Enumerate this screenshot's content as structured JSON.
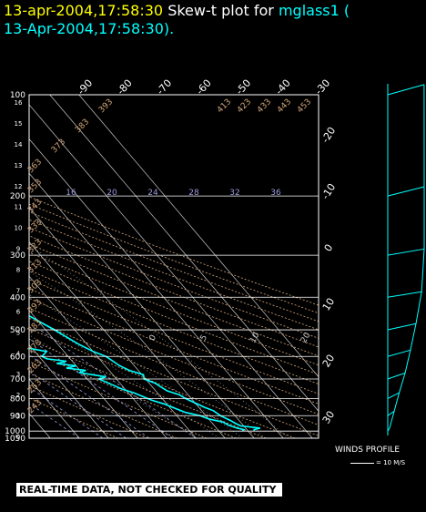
{
  "header": {
    "date_label": "13-apr-2004,17:58:30",
    "plot_label": "Skew-t plot for",
    "station": "mglass1",
    "paren_open": "(",
    "line2": "13-Apr-2004,17:58:30)."
  },
  "chart_data": {
    "type": "skew-t",
    "pressure_axis_labels": [
      "100",
      "200",
      "300",
      "400",
      "500",
      "600",
      "700",
      "800",
      "900",
      "1000",
      "1050"
    ],
    "pressure_levels_hpa": [
      100,
      200,
      300,
      400,
      500,
      600,
      700,
      800,
      900,
      1000,
      1050
    ],
    "height_axis_labels": [
      "0",
      "1",
      "2",
      "3",
      "4",
      "5",
      "6",
      "7",
      "8",
      "9",
      "10",
      "11",
      "12",
      "13",
      "14",
      "15",
      "16"
    ],
    "temperature_ticks_top": [
      "-90",
      "-80",
      "-70",
      "-60",
      "-50",
      "-40",
      "-30"
    ],
    "temperature_ticks_right": [
      "-20",
      "-10",
      "0",
      "10",
      "20",
      "30"
    ],
    "dry_adiabat_labels": [
      "393",
      "383",
      "373",
      "363",
      "353",
      "343",
      "333",
      "323",
      "313",
      "303",
      "293",
      "283",
      "273",
      "263",
      "253",
      "243",
      "413",
      "423",
      "433",
      "443",
      "453"
    ],
    "mixing_ratio_labels": [
      "16",
      "20",
      "24",
      "28",
      "32",
      "36"
    ],
    "lower_labels": [
      "0",
      "5",
      "10",
      "20"
    ],
    "temperature_profile": [
      [
        1000,
        22
      ],
      [
        990,
        22.5
      ],
      [
        980,
        25
      ],
      [
        965,
        19
      ],
      [
        950,
        18
      ],
      [
        930,
        17
      ],
      [
        900,
        15
      ],
      [
        870,
        14
      ],
      [
        850,
        12
      ],
      [
        800,
        8
      ],
      [
        780,
        7
      ],
      [
        760,
        4
      ],
      [
        740,
        3
      ],
      [
        720,
        2
      ],
      [
        700,
        -0.5
      ],
      [
        680,
        0.5
      ],
      [
        660,
        -3
      ],
      [
        640,
        -5
      ],
      [
        600,
        -7
      ],
      [
        580,
        -10
      ],
      [
        550,
        -13
      ],
      [
        500,
        -17
      ],
      [
        450,
        -22
      ],
      [
        400,
        -29
      ],
      [
        350,
        -36
      ],
      [
        300,
        -43
      ],
      [
        260,
        -50
      ],
      [
        230,
        -54
      ],
      [
        210,
        -58
      ],
      [
        200,
        -60
      ],
      [
        180,
        -61
      ],
      [
        160,
        -63
      ],
      [
        140,
        -63
      ],
      [
        120,
        -62
      ],
      [
        100,
        -61
      ]
    ],
    "dewpoint_profile": [
      [
        1000,
        18
      ],
      [
        990,
        19
      ],
      [
        980,
        17
      ],
      [
        960,
        15
      ],
      [
        940,
        14
      ],
      [
        920,
        10
      ],
      [
        900,
        8
      ],
      [
        880,
        4
      ],
      [
        860,
        2
      ],
      [
        850,
        1
      ],
      [
        830,
        -1
      ],
      [
        810,
        -4
      ],
      [
        790,
        -6
      ],
      [
        770,
        -8
      ],
      [
        750,
        -11
      ],
      [
        730,
        -13
      ],
      [
        710,
        -15
      ],
      [
        700,
        -16
      ],
      [
        690,
        -13
      ],
      [
        680,
        -17
      ],
      [
        670,
        -21
      ],
      [
        660,
        -18
      ],
      [
        650,
        -24
      ],
      [
        640,
        -20
      ],
      [
        630,
        -26
      ],
      [
        620,
        -22
      ],
      [
        610,
        -28
      ],
      [
        600,
        -29
      ],
      [
        580,
        -26
      ],
      [
        560,
        -34
      ],
      [
        550,
        -32
      ],
      [
        540,
        -37
      ],
      [
        520,
        -36
      ],
      [
        500,
        -38
      ],
      [
        480,
        -40
      ],
      [
        460,
        -42
      ],
      [
        440,
        -44
      ],
      [
        420,
        -46
      ],
      [
        400,
        -49
      ],
      [
        350,
        -57
      ],
      [
        300,
        -64
      ],
      [
        250,
        -71
      ],
      [
        210,
        -76
      ],
      [
        200,
        -77
      ],
      [
        180,
        -78
      ],
      [
        160,
        -79
      ],
      [
        140,
        -80
      ],
      [
        120,
        -80
      ],
      [
        100,
        -81
      ]
    ],
    "winds": [
      {
        "pressure": 1000,
        "speed_ms": 5,
        "dir_deg": 200
      },
      {
        "pressure": 900,
        "speed_ms": 10,
        "dir_deg": 220
      },
      {
        "pressure": 800,
        "speed_ms": 15,
        "dir_deg": 230
      },
      {
        "pressure": 700,
        "speed_ms": 20,
        "dir_deg": 240
      },
      {
        "pressure": 600,
        "speed_ms": 25,
        "dir_deg": 245
      },
      {
        "pressure": 500,
        "speed_ms": 30,
        "dir_deg": 250
      },
      {
        "pressure": 400,
        "speed_ms": 35,
        "dir_deg": 255
      },
      {
        "pressure": 300,
        "speed_ms": 40,
        "dir_deg": 255
      },
      {
        "pressure": 200,
        "speed_ms": 45,
        "dir_deg": 250
      },
      {
        "pressure": 100,
        "speed_ms": 40,
        "dir_deg": 245
      }
    ],
    "colors": {
      "temperature": "#00ffff",
      "dewpoint": "#00ffff",
      "isobar": "#ffffff",
      "isotherm": "#cccccc",
      "adiabat": "#d4a87a",
      "moist": "#aaaaaa",
      "mixing": "#9999dd",
      "frame": "#ffffff"
    }
  },
  "footer": {
    "qc_notice": "REAL-TIME DATA, NOT CHECKED FOR QUALITY",
    "winds_title": "WINDS PROFILE",
    "winds_scale": "= 10 M/S"
  }
}
